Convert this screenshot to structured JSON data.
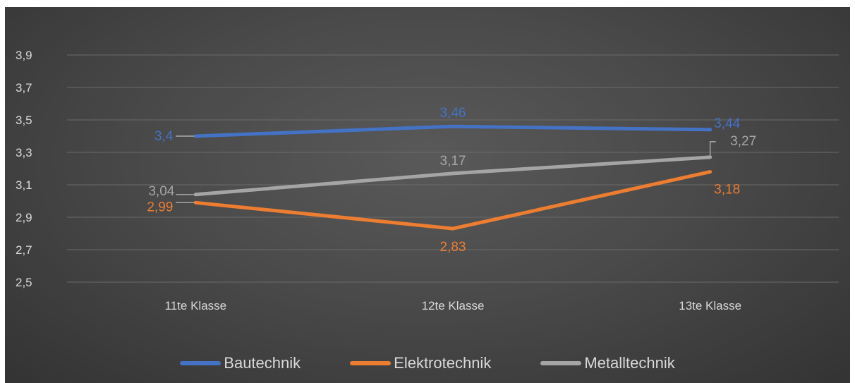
{
  "chart_data": {
    "type": "line",
    "title": "",
    "xlabel": "",
    "ylabel": "",
    "categories": [
      "11te Klasse",
      "12te Klasse",
      "13te Klasse"
    ],
    "y_ticks": [
      "2,5",
      "2,7",
      "2,9",
      "3,1",
      "3,3",
      "3,5",
      "3,7",
      "3,9"
    ],
    "ylim": [
      2.5,
      4.1
    ],
    "grid": true,
    "legend_position": "bottom",
    "series": [
      {
        "name": "Bautechnik",
        "color": "#4472c4",
        "values": [
          3.4,
          3.46,
          3.44
        ],
        "labels": [
          "3,4",
          "3,46",
          "3,44"
        ]
      },
      {
        "name": "Elektrotechnik",
        "color": "#ed7d31",
        "values": [
          2.99,
          2.83,
          3.18
        ],
        "labels": [
          "2,99",
          "2,83",
          "3,18"
        ]
      },
      {
        "name": "Metalltechnik",
        "color": "#a5a5a5",
        "values": [
          3.04,
          3.17,
          3.27
        ],
        "labels": [
          "3,04",
          "3,17",
          "3,27"
        ]
      }
    ]
  }
}
